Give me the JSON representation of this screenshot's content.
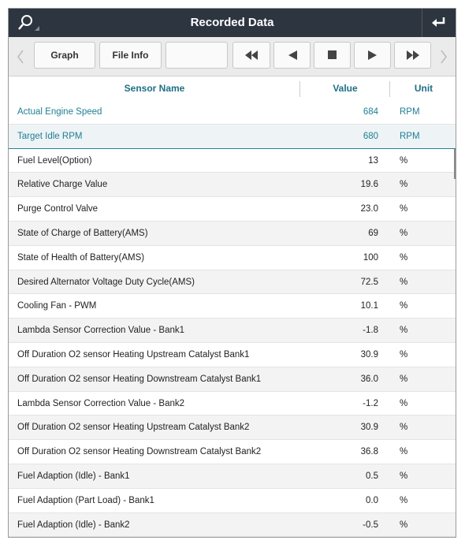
{
  "header": {
    "title": "Recorded Data"
  },
  "toolbar": {
    "buttons": [
      "Graph",
      "File Info"
    ]
  },
  "table": {
    "columns": [
      "Sensor Name",
      "Value",
      "Unit"
    ],
    "pinned_rows": [
      [
        "Actual Engine Speed",
        "684",
        "RPM"
      ],
      [
        "Target Idle RPM",
        "680",
        "RPM"
      ]
    ],
    "rows": [
      [
        "Fuel Level(Option)",
        "13",
        "%"
      ],
      [
        "Relative Charge Value",
        "19.6",
        "%"
      ],
      [
        "Purge Control Valve",
        "23.0",
        "%"
      ],
      [
        "State of Charge of Battery(AMS)",
        "69",
        "%"
      ],
      [
        "State of Health of Battery(AMS)",
        "100",
        "%"
      ],
      [
        "Desired Alternator Voltage Duty Cycle(AMS)",
        "72.5",
        "%"
      ],
      [
        "Cooling Fan - PWM",
        "10.1",
        "%"
      ],
      [
        "Lambda Sensor Correction Value - Bank1",
        "-1.8",
        "%"
      ],
      [
        "Off Duration O2 sensor Heating Upstream Catalyst Bank1",
        "30.9",
        "%"
      ],
      [
        "Off Duration O2 sensor Heating Downstream Catalyst Bank1",
        "36.0",
        "%"
      ],
      [
        "Lambda Sensor Correction Value - Bank2",
        "-1.2",
        "%"
      ],
      [
        "Off Duration O2 sensor Heating Upstream Catalyst Bank2",
        "30.9",
        "%"
      ],
      [
        "Off Duration O2 sensor Heating Downstream Catalyst Bank2",
        "36.8",
        "%"
      ],
      [
        "Fuel Adaption (Idle) - Bank1",
        "0.5",
        "%"
      ],
      [
        "Fuel Adaption (Part Load) - Bank1",
        "0.0",
        "%"
      ],
      [
        "Fuel Adaption (Idle) - Bank2",
        "-0.5",
        "%"
      ]
    ]
  }
}
